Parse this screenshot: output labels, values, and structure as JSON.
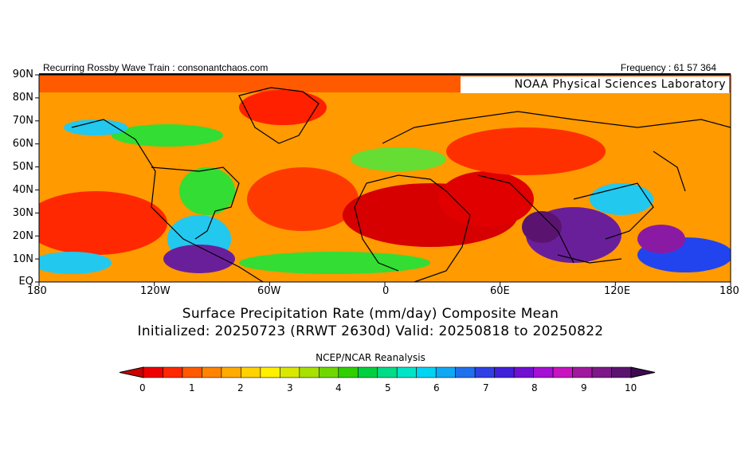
{
  "header": {
    "left": "Recurring Rossby Wave Train : consonantchaos.com",
    "right": "Frequency : 61 57 364"
  },
  "map": {
    "credit": "NOAA Physical Sciences Laboratory",
    "lat_labels": [
      "90N",
      "80N",
      "70N",
      "60N",
      "50N",
      "40N",
      "30N",
      "20N",
      "10N",
      "EQ"
    ],
    "lon_labels": [
      "180",
      "120W",
      "60W",
      "0",
      "60E",
      "120E",
      "180"
    ],
    "colors": {
      "ocean_base": "#ff9a00",
      "dry_red": "#ff1a00",
      "very_dry": "#d60000",
      "moist_green": "#33dd33",
      "moist_cyan": "#22c8ee",
      "wet_blue": "#2244ee",
      "very_wet_purple": "#6a1f9a",
      "coast": "#000000"
    }
  },
  "title": {
    "line1": "Surface Precipitation Rate (mm/day) Composite Mean",
    "line2": "Initialized: 20250723 (RRWT 2630d) Valid: 20250818 to 20250822"
  },
  "source": "NCEP/NCAR Reanalysis",
  "colorbar": {
    "labels": [
      "0",
      "1",
      "2",
      "3",
      "4",
      "5",
      "6",
      "7",
      "8",
      "9",
      "10"
    ],
    "colors": [
      "#ee0000",
      "#ff2800",
      "#ff5a00",
      "#ff8400",
      "#ffab00",
      "#ffd200",
      "#fff000",
      "#d8e800",
      "#a8e000",
      "#70d800",
      "#30d000",
      "#00d040",
      "#00dc88",
      "#00e4c8",
      "#00d4f4",
      "#10a8f4",
      "#2070ee",
      "#3040e4",
      "#4020d8",
      "#7010d0",
      "#a410d4",
      "#c814c0",
      "#a0189c",
      "#7c1888",
      "#5a1470"
    ]
  }
}
